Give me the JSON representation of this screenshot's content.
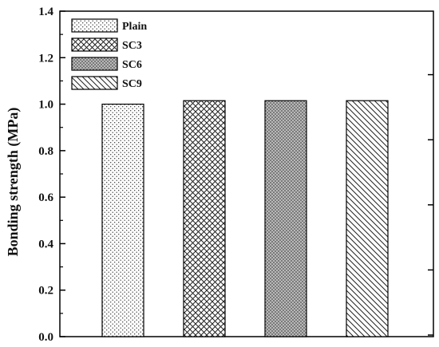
{
  "chart_data": {
    "type": "bar",
    "categories": [
      "Plain",
      "SC3",
      "SC6",
      "SC9"
    ],
    "values": [
      1.0,
      1.015,
      1.015,
      1.015
    ],
    "ylabel": "Bonding strength (MPa)",
    "xlabel": "",
    "ylim": [
      0,
      1.4
    ],
    "yticks": [
      "0.0",
      "0.2",
      "0.4",
      "0.6",
      "0.8",
      "1.0",
      "1.2",
      "1.4"
    ],
    "legend": {
      "placement": "top-left",
      "entries": [
        {
          "label": "Plain",
          "pattern": "sparse-dots"
        },
        {
          "label": "SC3",
          "pattern": "crosshatch"
        },
        {
          "label": "SC6",
          "pattern": "dense-dots-gray"
        },
        {
          "label": "SC9",
          "pattern": "diagonal-lines"
        }
      ]
    },
    "grid": false
  }
}
